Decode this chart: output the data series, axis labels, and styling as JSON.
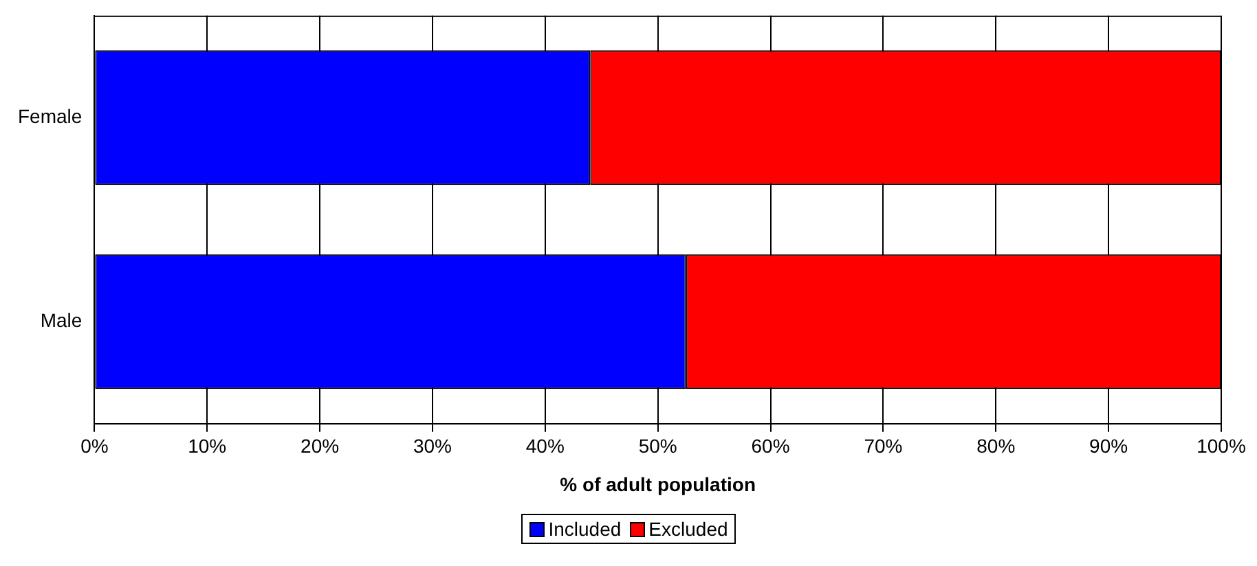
{
  "chart_data": {
    "type": "bar",
    "orientation": "horizontal",
    "stacked": true,
    "xlabel": "% of adult population",
    "categories": [
      "Female",
      "Male"
    ],
    "series": [
      {
        "name": "Included",
        "color": "#0000ff",
        "values": [
          44,
          52.5
        ]
      },
      {
        "name": "Excluded",
        "color": "#ff0000",
        "values": [
          56,
          47.5
        ]
      }
    ],
    "xlim": [
      0,
      100
    ],
    "xticks": [
      {
        "value": 0,
        "label": "0%"
      },
      {
        "value": 10,
        "label": "10%"
      },
      {
        "value": 20,
        "label": "20%"
      },
      {
        "value": 30,
        "label": "30%"
      },
      {
        "value": 40,
        "label": "40%"
      },
      {
        "value": 50,
        "label": "50%"
      },
      {
        "value": 60,
        "label": "60%"
      },
      {
        "value": 70,
        "label": "70%"
      },
      {
        "value": 80,
        "label": "80%"
      },
      {
        "value": 90,
        "label": "90%"
      },
      {
        "value": 100,
        "label": "100%"
      }
    ],
    "grid": "x",
    "legend": "bottom"
  }
}
